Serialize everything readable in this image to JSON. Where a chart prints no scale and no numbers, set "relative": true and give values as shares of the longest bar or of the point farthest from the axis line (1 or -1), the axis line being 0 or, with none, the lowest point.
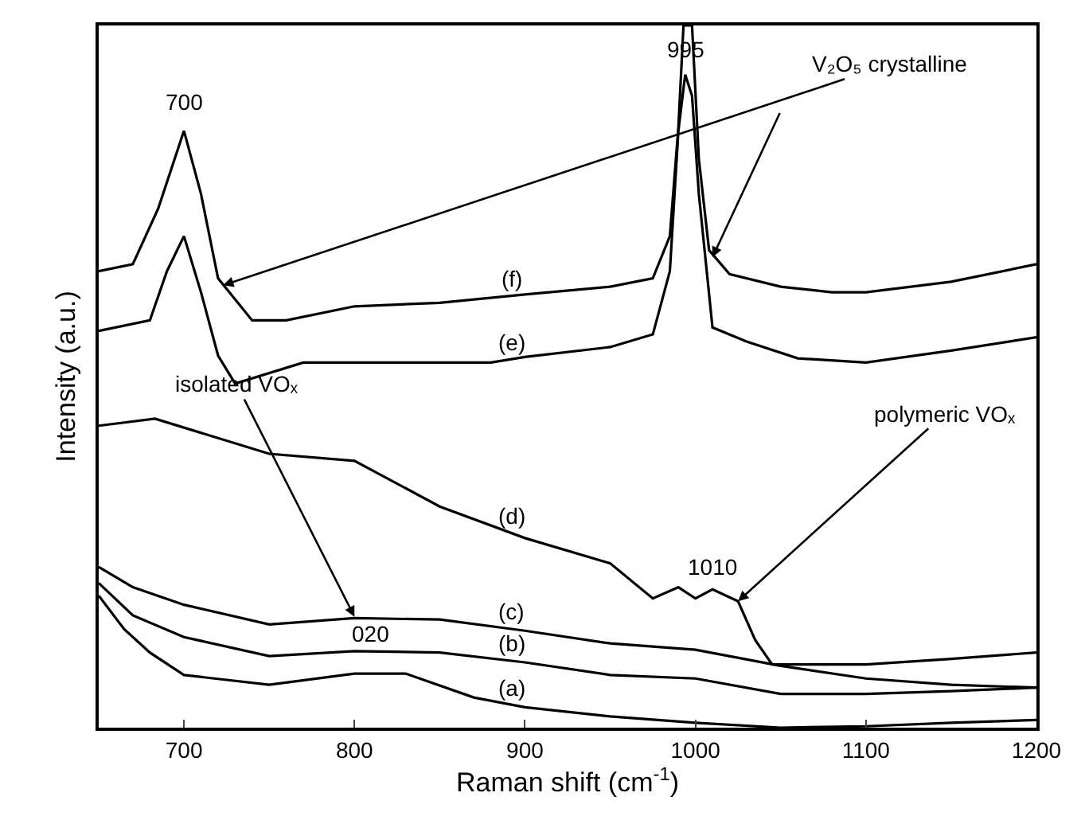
{
  "chart_data": {
    "type": "line",
    "relative": true,
    "xlabel": "Raman shift (cm$^{-1}$)",
    "ylabel": "Intensity (a.u.)",
    "xlim": [
      650,
      1200
    ],
    "xticks": [
      700,
      800,
      900,
      1000,
      1100,
      1200
    ],
    "marker": "none",
    "line_style": "solid",
    "series": [
      {
        "name": "(a)",
        "color": "#000000",
        "x": [
          650,
          665,
          680,
          700,
          750,
          800,
          830,
          870,
          900,
          950,
          1000,
          1050,
          1100,
          1150,
          1200
        ],
        "values": [
          0.188,
          0.14,
          0.107,
          0.075,
          0.061,
          0.077,
          0.077,
          0.043,
          0.029,
          0.016,
          0.007,
          0.0,
          0.002,
          0.007,
          0.011
        ]
      },
      {
        "name": "(b)",
        "color": "#000000",
        "x": [
          650,
          670,
          700,
          750,
          800,
          850,
          900,
          950,
          1000,
          1050,
          1100,
          1150,
          1200
        ],
        "values": [
          0.206,
          0.16,
          0.129,
          0.102,
          0.109,
          0.107,
          0.093,
          0.075,
          0.07,
          0.048,
          0.048,
          0.052,
          0.057
        ]
      },
      {
        "name": "(c)",
        "color": "#000000",
        "x": [
          650,
          670,
          700,
          750,
          800,
          850,
          900,
          950,
          1000,
          1050,
          1100,
          1150,
          1200
        ],
        "values": [
          0.229,
          0.2,
          0.175,
          0.147,
          0.156,
          0.154,
          0.138,
          0.12,
          0.111,
          0.088,
          0.07,
          0.061,
          0.057
        ]
      },
      {
        "name": "(d)",
        "color": "#000000",
        "x": [
          650,
          683,
          750,
          800,
          850,
          900,
          950,
          975,
          990,
          1000,
          1010,
          1025,
          1035,
          1045,
          1100,
          1150,
          1200
        ],
        "values": [
          0.43,
          0.44,
          0.39,
          0.38,
          0.315,
          0.27,
          0.234,
          0.184,
          0.2,
          0.184,
          0.197,
          0.18,
          0.125,
          0.09,
          0.09,
          0.098,
          0.107
        ]
      },
      {
        "name": "(e)",
        "color": "#000000",
        "x": [
          650,
          680,
          690,
          700,
          710,
          720,
          730,
          770,
          880,
          900,
          950,
          975,
          985,
          990,
          994,
          998,
          1002,
          1010,
          1030,
          1060,
          1100,
          1150,
          1200
        ],
        "values": [
          0.565,
          0.58,
          0.65,
          0.7,
          0.62,
          0.53,
          0.49,
          0.52,
          0.52,
          0.528,
          0.542,
          0.56,
          0.65,
          0.85,
          0.93,
          0.9,
          0.76,
          0.57,
          0.55,
          0.526,
          0.52,
          0.537,
          0.556
        ]
      },
      {
        "name": "(f)",
        "color": "#000000",
        "x": [
          650,
          670,
          685,
          700,
          710,
          720,
          740,
          760,
          800,
          850,
          900,
          950,
          975,
          985,
          990,
          993,
          998,
          1002,
          1008,
          1020,
          1050,
          1080,
          1100,
          1150,
          1200
        ],
        "values": [
          0.65,
          0.66,
          0.74,
          0.85,
          0.76,
          0.64,
          0.58,
          0.58,
          0.6,
          0.605,
          0.617,
          0.628,
          0.64,
          0.7,
          0.855,
          1.0,
          1.0,
          0.81,
          0.68,
          0.646,
          0.628,
          0.62,
          0.62,
          0.635,
          0.66
        ]
      }
    ],
    "annotations": [
      {
        "text": "700",
        "x": 700,
        "y": 0.85
      },
      {
        "text": "995",
        "x": 995,
        "y": 0.965
      },
      {
        "text": "V₂O₅ crystalline",
        "x": 723,
        "y": 0.63
      },
      {
        "text": "isolated VOₓ",
        "x": 800,
        "y": 0.158
      },
      {
        "text": "polymeric VOₓ",
        "x": 1025,
        "y": 0.18
      },
      {
        "text": "1010",
        "x": 1010,
        "y": 0.197
      },
      {
        "text": "020",
        "x": 810,
        "y": 0.108
      }
    ]
  }
}
